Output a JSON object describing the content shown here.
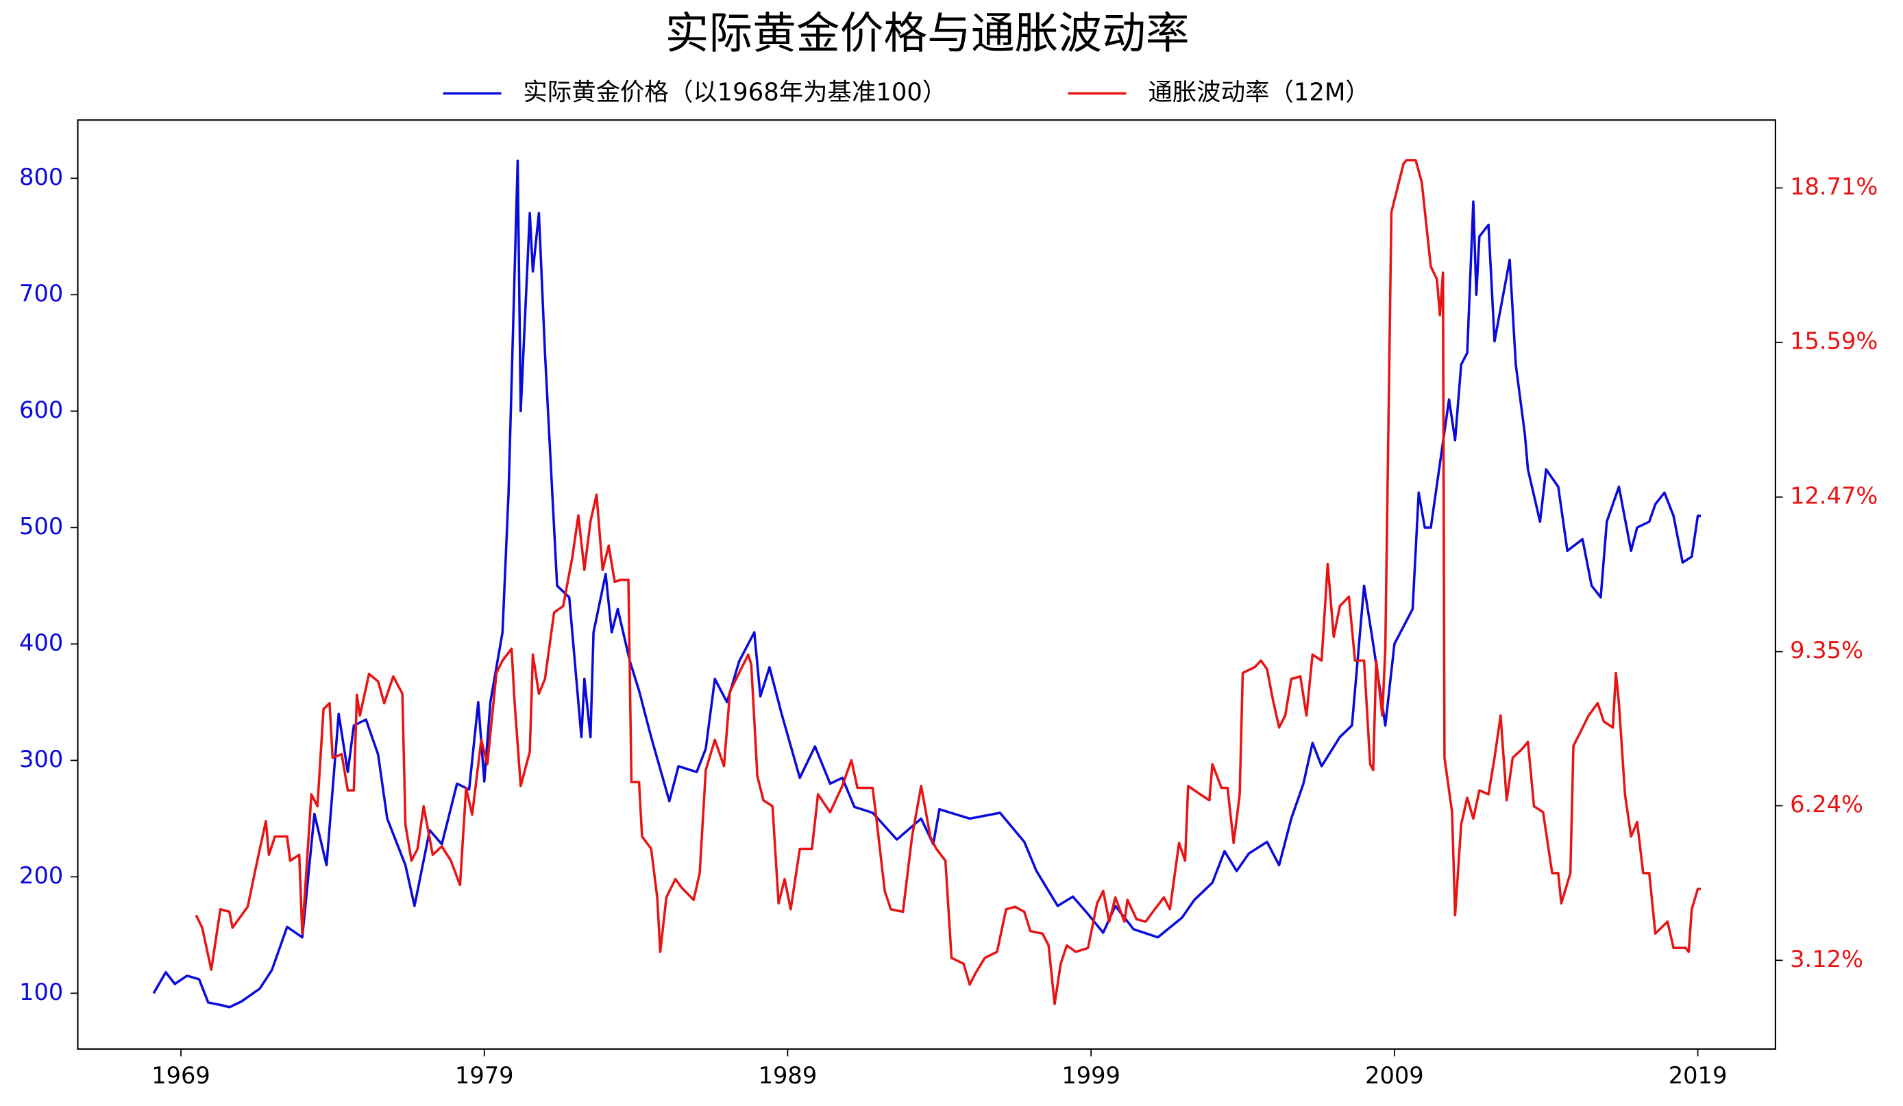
{
  "chart_data": {
    "type": "line",
    "title": "实际黄金价格与通胀波动率",
    "xlim": [
      1965.6,
      2021.56
    ],
    "xticks": [
      1969,
      1979,
      1989,
      1999,
      2009,
      2019
    ],
    "ylim": [
      52.1,
      850
    ],
    "yticks": [
      100,
      200,
      300,
      400,
      500,
      600,
      700,
      800
    ],
    "y2lim": [
      1.33,
      20.08
    ],
    "y2ticks": [
      {
        "value": 3.12,
        "label": "3.12%"
      },
      {
        "value": 6.24,
        "label": "6.24%"
      },
      {
        "value": 9.35,
        "label": "9.35%"
      },
      {
        "value": 12.47,
        "label": "12.47%"
      },
      {
        "value": 15.59,
        "label": "15.59%"
      },
      {
        "value": 18.71,
        "label": "18.71%"
      }
    ],
    "grid": false,
    "legend": "top",
    "series": [
      {
        "name": "实际黄金价格（以1968年为基准100）",
        "color": "#0a0adc",
        "axis": "y",
        "x": [
          1968.1,
          1968.5,
          1968.8,
          1969.2,
          1969.6,
          1969.9,
          1970.3,
          1970.6,
          1971.0,
          1971.6,
          1972.0,
          1972.5,
          1973.0,
          1973.4,
          1973.8,
          1974.2,
          1974.5,
          1974.7,
          1975.1,
          1975.5,
          1975.8,
          1976.4,
          1976.7,
          1977.2,
          1977.6,
          1978.1,
          1978.5,
          1978.8,
          1979.0,
          1979.2,
          1979.6,
          1979.8,
          1980.1,
          1980.2,
          1980.5,
          1980.6,
          1980.8,
          1981.0,
          1981.4,
          1981.8,
          1982.2,
          1982.3,
          1982.5,
          1982.6,
          1983.0,
          1983.2,
          1983.4,
          1983.8,
          1984.1,
          1984.5,
          1985.1,
          1985.4,
          1986.0,
          1986.3,
          1986.6,
          1987.0,
          1987.4,
          1987.9,
          1988.1,
          1988.4,
          1988.8,
          1989.4,
          1989.9,
          1990.4,
          1990.8,
          1991.2,
          1991.8,
          1992.6,
          1993.4,
          1993.8,
          1994.0,
          1995.0,
          1996.0,
          1996.8,
          1997.2,
          1997.9,
          1998.4,
          1998.9,
          1999.4,
          1999.8,
          2000.4,
          2001.2,
          2002.0,
          2002.4,
          2003.0,
          2003.4,
          2003.8,
          2004.2,
          2004.8,
          2005.2,
          2005.6,
          2006.0,
          2006.3,
          2006.6,
          2007.2,
          2007.6,
          2008.0,
          2008.3,
          2008.7,
          2009.0,
          2009.4,
          2009.6,
          2009.8,
          2010.0,
          2010.2,
          2010.5,
          2010.8,
          2011.0,
          2011.2,
          2011.4,
          2011.6,
          2011.7,
          2011.8,
          2012.1,
          2012.3,
          2012.8,
          2013.0,
          2013.3,
          2013.4,
          2013.8,
          2014.0,
          2014.4,
          2014.7,
          2015.2,
          2015.5,
          2015.8,
          2016.0,
          2016.4,
          2016.8,
          2017.0,
          2017.4,
          2017.6,
          2017.9,
          2018.2,
          2018.5,
          2018.8,
          2019.0,
          2019.1
        ],
        "values": [
          100,
          118,
          108,
          115,
          112,
          92,
          90,
          88,
          93,
          104,
          120,
          157,
          148,
          254,
          210,
          340,
          290,
          330,
          335,
          305,
          250,
          210,
          175,
          240,
          228,
          280,
          275,
          350,
          282,
          350,
          410,
          530,
          815,
          600,
          770,
          720,
          770,
          650,
          450,
          440,
          320,
          370,
          320,
          410,
          460,
          410,
          430,
          385,
          360,
          320,
          265,
          295,
          290,
          310,
          370,
          350,
          385,
          410,
          355,
          380,
          340,
          285,
          312,
          280,
          285,
          260,
          255,
          232,
          250,
          228,
          258,
          250,
          255,
          230,
          205,
          175,
          183,
          168,
          152,
          175,
          155,
          148,
          165,
          180,
          195,
          222,
          205,
          220,
          230,
          210,
          250,
          280,
          315,
          295,
          320,
          330,
          450,
          400,
          330,
          400,
          420,
          430,
          530,
          500,
          500,
          555,
          610,
          575,
          640,
          650,
          780,
          700,
          750,
          760,
          660,
          730,
          640,
          580,
          550,
          505,
          550,
          535,
          480,
          490,
          450,
          440,
          505,
          535,
          480,
          500,
          505,
          520,
          530,
          510,
          470,
          475,
          510,
          510
        ]
      },
      {
        "name": "通胀波动率（12M）",
        "color": "#e81414",
        "axis": "y2",
        "x": [
          1969.5,
          1969.7,
          1970.0,
          1970.3,
          1970.6,
          1970.7,
          1971.2,
          1971.5,
          1971.8,
          1971.9,
          1972.1,
          1972.5,
          1972.6,
          1972.9,
          1973.0,
          1973.3,
          1973.5,
          1973.7,
          1973.9,
          1974.0,
          1974.3,
          1974.5,
          1974.7,
          1974.8,
          1974.9,
          1975.2,
          1975.5,
          1975.7,
          1976.0,
          1976.3,
          1976.4,
          1976.6,
          1976.8,
          1977.0,
          1977.3,
          1977.6,
          1977.9,
          1978.2,
          1978.4,
          1978.6,
          1978.9,
          1979.1,
          1979.4,
          1979.6,
          1979.9,
          1980.0,
          1980.2,
          1980.5,
          1980.6,
          1980.8,
          1981.0,
          1981.3,
          1981.6,
          1981.9,
          1982.1,
          1982.3,
          1982.5,
          1982.7,
          1982.9,
          1983.1,
          1983.3,
          1983.5,
          1983.75,
          1983.85,
          1984.1,
          1984.2,
          1984.5,
          1984.7,
          1984.8,
          1985.0,
          1985.3,
          1985.5,
          1985.9,
          1986.1,
          1986.3,
          1986.6,
          1986.9,
          1987.1,
          1987.4,
          1987.7,
          1987.8,
          1988.0,
          1988.2,
          1988.5,
          1988.7,
          1988.9,
          1989.1,
          1989.4,
          1989.8,
          1990.0,
          1990.4,
          1990.8,
          1991.1,
          1991.3,
          1991.8,
          1991.9,
          1992.2,
          1992.4,
          1992.8,
          1993.1,
          1993.4,
          1993.7,
          1993.9,
          1994.2,
          1994.4,
          1994.8,
          1995.0,
          1995.2,
          1995.5,
          1995.9,
          1996.2,
          1996.5,
          1996.8,
          1997.0,
          1997.4,
          1997.6,
          1997.8,
          1998.0,
          1998.2,
          1998.5,
          1998.9,
          1999.2,
          1999.4,
          1999.6,
          1999.8,
          2000.1,
          2000.2,
          2000.5,
          2000.8,
          2001.1,
          2001.4,
          2001.6,
          2001.9,
          2002.1,
          2002.2,
          2002.6,
          2002.9,
          2003.0,
          2003.3,
          2003.5,
          2003.7,
          2003.9,
          2004.0,
          2004.4,
          2004.6,
          2004.8,
          2005.0,
          2005.2,
          2005.4,
          2005.6,
          2005.9,
          2006.1,
          2006.3,
          2006.6,
          2006.8,
          2007.0,
          2007.2,
          2007.5,
          2007.7,
          2008.0,
          2008.2,
          2008.3,
          2008.4,
          2008.6,
          2008.7,
          2008.9,
          2009.1,
          2009.3,
          2009.4,
          2009.7,
          2009.9,
          2010.2,
          2010.4,
          2010.5,
          2010.6,
          2010.65,
          2010.9,
          2011.0,
          2011.2,
          2011.4,
          2011.6,
          2011.8,
          2012.1,
          2012.3,
          2012.5,
          2012.7,
          2012.9,
          2013.2,
          2013.4,
          2013.6,
          2013.9,
          2014.2,
          2014.4,
          2014.5,
          2014.8,
          2014.9,
          2015.1,
          2015.4,
          2015.7,
          2015.9,
          2016.2,
          2016.3,
          2016.4,
          2016.6,
          2016.8,
          2017.0,
          2017.2,
          2017.4,
          2017.6,
          2017.8,
          2018.0,
          2018.2,
          2018.6,
          2018.7,
          2018.8,
          2019.0,
          2019.1
        ],
        "values": [
          4.03,
          3.78,
          2.93,
          4.15,
          4.1,
          3.78,
          4.2,
          5.08,
          5.93,
          5.25,
          5.62,
          5.62,
          5.13,
          5.25,
          3.66,
          6.47,
          6.23,
          8.19,
          8.31,
          7.21,
          7.28,
          6.55,
          6.55,
          8.48,
          8.06,
          8.9,
          8.75,
          8.31,
          8.85,
          8.5,
          5.86,
          5.13,
          5.37,
          6.23,
          5.25,
          5.42,
          5.13,
          4.64,
          6.6,
          6.06,
          7.57,
          7.08,
          8.92,
          9.17,
          9.41,
          8.31,
          6.64,
          7.33,
          9.29,
          8.5,
          8.8,
          10.14,
          10.27,
          11.25,
          12.1,
          11.0,
          11.98,
          12.52,
          11.0,
          11.49,
          10.76,
          10.8,
          10.8,
          6.72,
          6.72,
          5.62,
          5.37,
          4.39,
          3.29,
          4.39,
          4.76,
          4.59,
          4.34,
          4.88,
          6.96,
          7.57,
          7.04,
          8.55,
          8.92,
          9.29,
          9.09,
          6.84,
          6.35,
          6.23,
          4.27,
          4.76,
          4.15,
          5.37,
          5.37,
          6.47,
          6.11,
          6.64,
          7.16,
          6.6,
          6.6,
          6.11,
          4.52,
          4.15,
          4.1,
          5.62,
          6.64,
          5.62,
          5.37,
          5.13,
          3.17,
          3.05,
          2.63,
          2.87,
          3.17,
          3.29,
          4.15,
          4.2,
          4.1,
          3.71,
          3.66,
          3.42,
          2.24,
          3.05,
          3.42,
          3.29,
          3.37,
          4.27,
          4.52,
          3.9,
          4.39,
          3.9,
          4.34,
          3.95,
          3.9,
          4.15,
          4.39,
          4.15,
          5.49,
          5.13,
          6.64,
          6.47,
          6.35,
          7.08,
          6.6,
          6.6,
          5.49,
          6.47,
          8.92,
          9.04,
          9.17,
          9.0,
          8.36,
          7.82,
          8.06,
          8.8,
          8.85,
          8.06,
          9.29,
          9.17,
          11.12,
          9.65,
          10.27,
          10.46,
          9.17,
          9.17,
          7.08,
          6.96,
          9.17,
          8.06,
          9.41,
          18.22,
          18.71,
          19.2,
          19.27,
          19.27,
          18.83,
          17.12,
          16.87,
          16.14,
          17.0,
          7.21,
          6.11,
          4.03,
          5.86,
          6.4,
          5.98,
          6.55,
          6.47,
          7.21,
          8.06,
          6.35,
          7.21,
          7.38,
          7.53,
          6.23,
          6.11,
          4.88,
          4.88,
          4.27,
          4.88,
          7.45,
          7.69,
          8.06,
          8.31,
          7.94,
          7.82,
          8.92,
          8.31,
          6.47,
          5.62,
          5.91,
          4.88,
          4.88,
          3.66,
          3.78,
          3.9,
          3.37,
          3.37,
          3.29,
          4.15,
          4.56,
          4.56
        ]
      }
    ]
  }
}
